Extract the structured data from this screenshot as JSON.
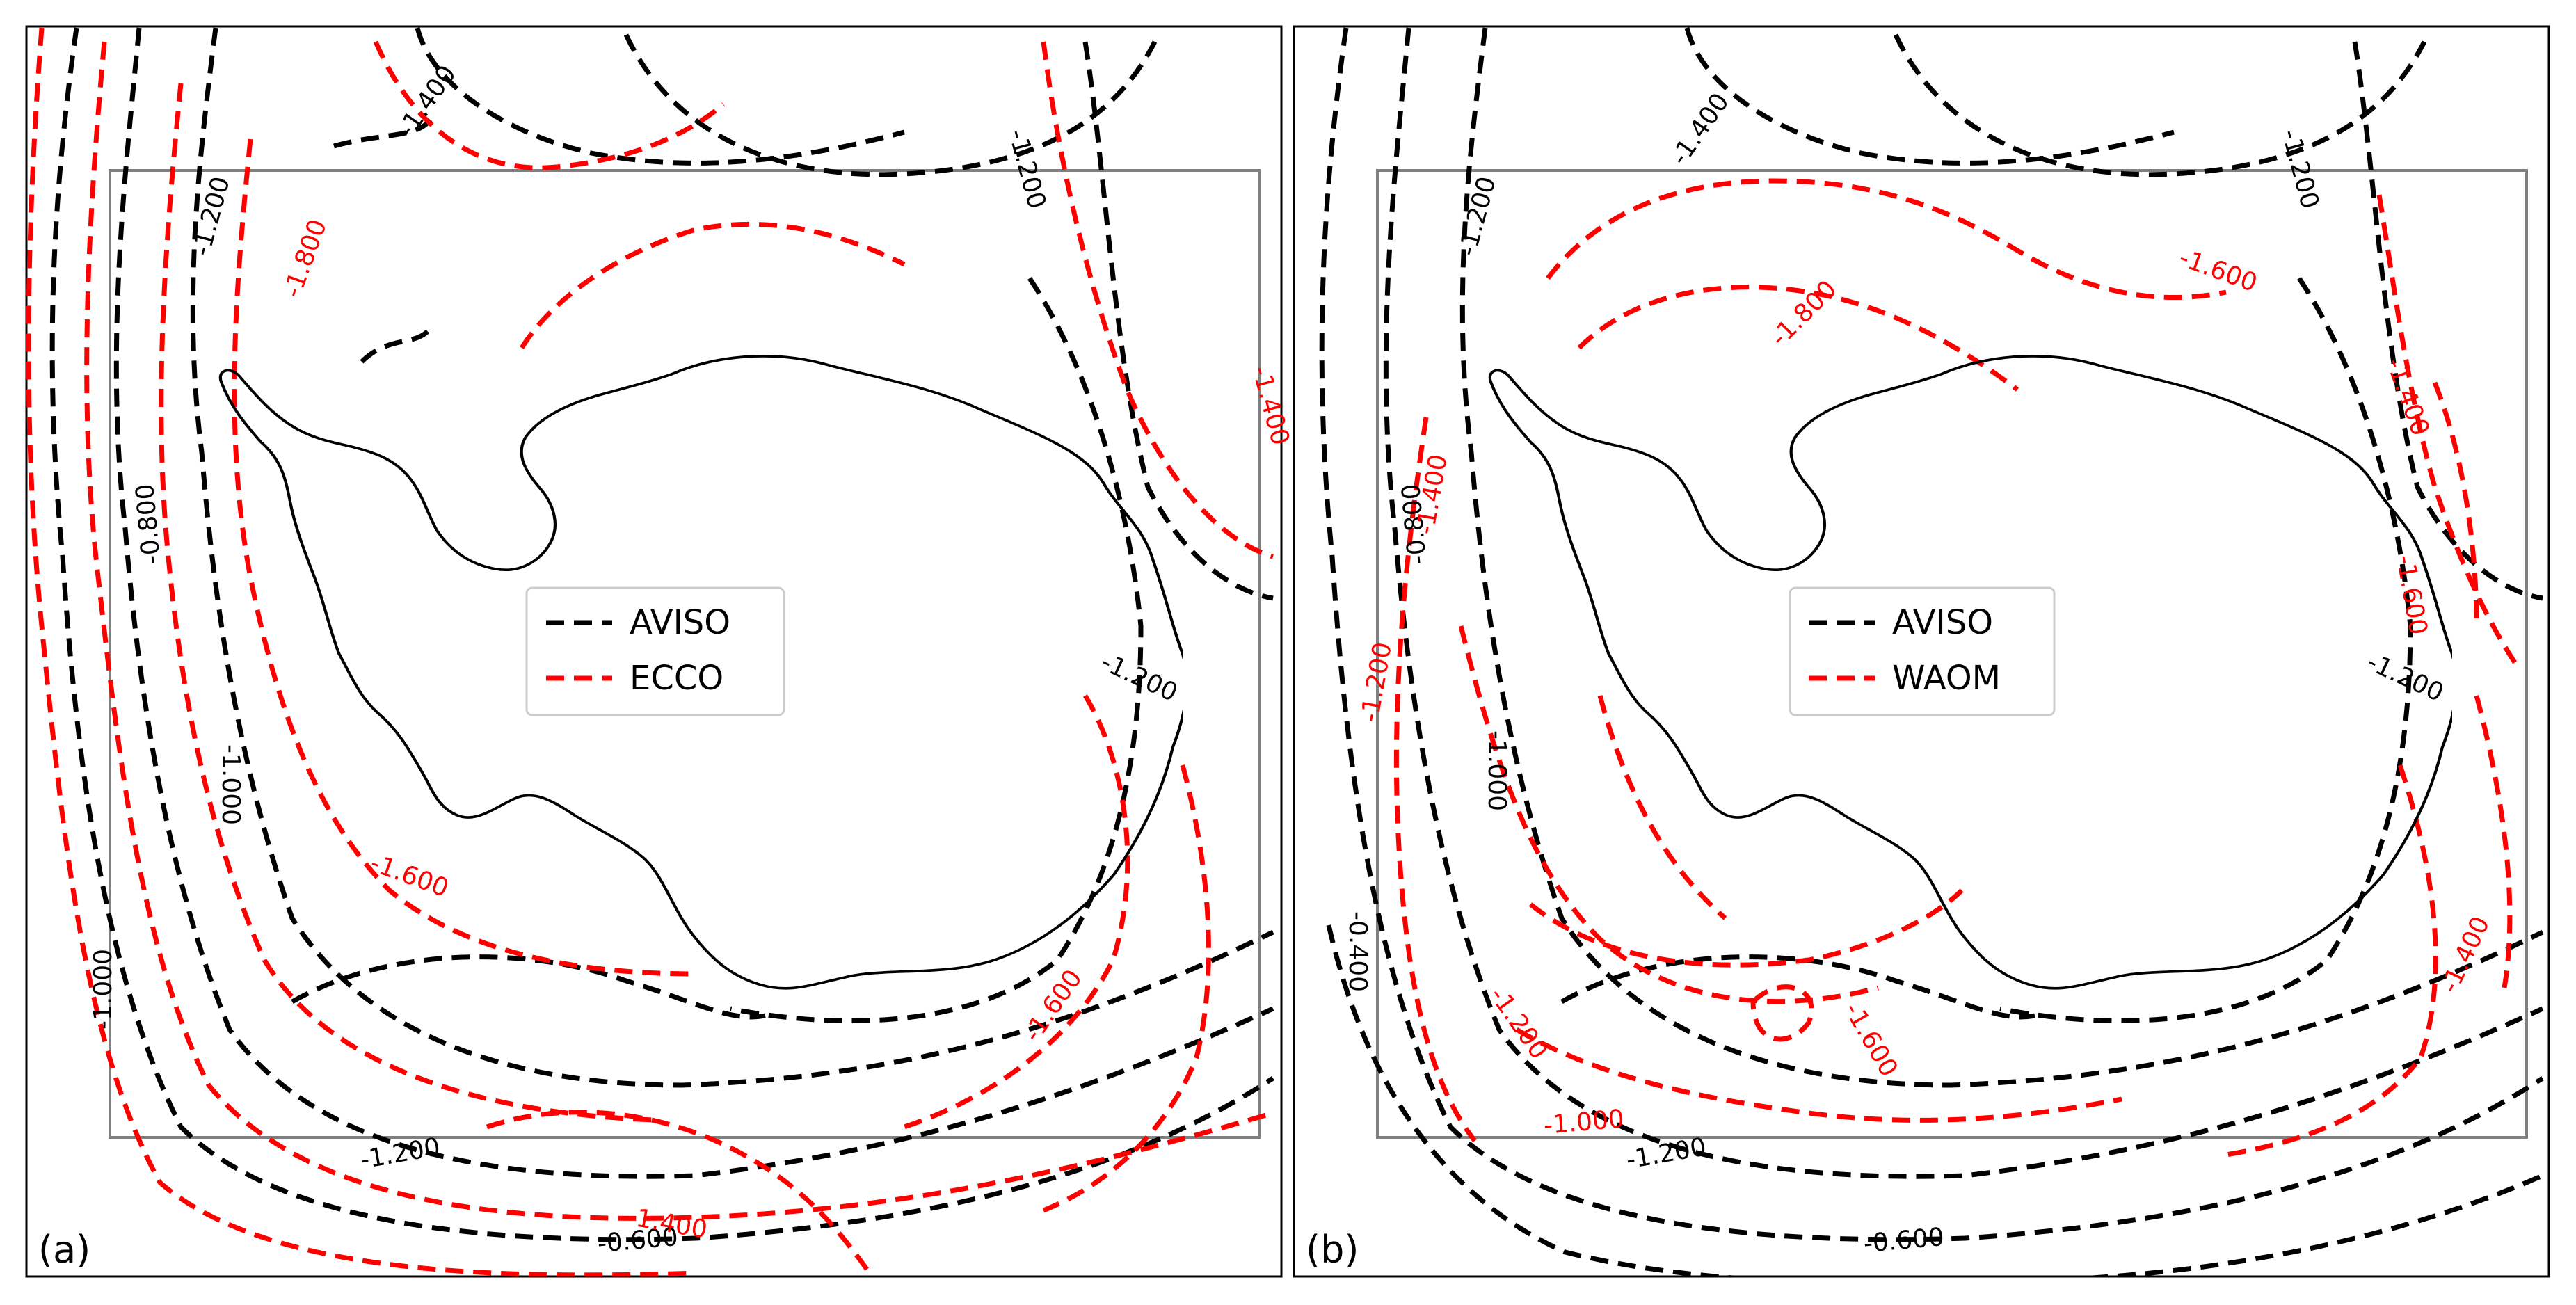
{
  "colors": {
    "aviso": "#000000",
    "model": "#ff0000",
    "coast": "#000000",
    "box": "#808080"
  },
  "panels": [
    {
      "id": "a",
      "label": "(a)",
      "legend": [
        {
          "name": "AVISO",
          "color": "#000000"
        },
        {
          "name": "ECCO",
          "color": "#ff0000"
        }
      ],
      "contour_labels": [
        {
          "text": "-1.400",
          "series": "AVISO"
        },
        {
          "text": "-1.200",
          "series": "AVISO"
        },
        {
          "text": "-1.200",
          "series": "AVISO"
        },
        {
          "text": "-0.800",
          "series": "AVISO"
        },
        {
          "text": "-1.200",
          "series": "AVISO"
        },
        {
          "text": "-1.000",
          "series": "AVISO"
        },
        {
          "text": "-1.000",
          "series": "AVISO"
        },
        {
          "text": "-1.200",
          "series": "AVISO"
        },
        {
          "text": "-0.600",
          "series": "AVISO"
        },
        {
          "text": "-1.800",
          "series": "ECCO"
        },
        {
          "text": "-1.600",
          "series": "ECCO"
        },
        {
          "text": "-1.600",
          "series": "ECCO"
        },
        {
          "text": "-1.400",
          "series": "ECCO"
        },
        {
          "text": "-1.400",
          "series": "ECCO"
        }
      ]
    },
    {
      "id": "b",
      "label": "(b)",
      "legend": [
        {
          "name": "AVISO",
          "color": "#000000"
        },
        {
          "name": "WAOM",
          "color": "#ff0000"
        }
      ],
      "contour_labels": [
        {
          "text": "-1.400",
          "series": "AVISO"
        },
        {
          "text": "-1.200",
          "series": "AVISO"
        },
        {
          "text": "-1.200",
          "series": "AVISO"
        },
        {
          "text": "-0.800",
          "series": "AVISO"
        },
        {
          "text": "-1.200",
          "series": "AVISO"
        },
        {
          "text": "-1.000",
          "series": "AVISO"
        },
        {
          "text": "-0.400",
          "series": "AVISO"
        },
        {
          "text": "-1.200",
          "series": "AVISO"
        },
        {
          "text": "-0.600",
          "series": "AVISO"
        },
        {
          "text": "-1.600",
          "series": "WAOM"
        },
        {
          "text": "-1.800",
          "series": "WAOM"
        },
        {
          "text": "-1.400",
          "series": "WAOM"
        },
        {
          "text": "-1.600",
          "series": "WAOM"
        },
        {
          "text": "-1.400",
          "series": "WAOM"
        },
        {
          "text": "-1.400",
          "series": "WAOM"
        },
        {
          "text": "-1.200",
          "series": "WAOM"
        },
        {
          "text": "-1.200",
          "series": "WAOM"
        },
        {
          "text": "-1.600",
          "series": "WAOM"
        },
        {
          "text": "-1.000",
          "series": "WAOM"
        }
      ]
    }
  ]
}
